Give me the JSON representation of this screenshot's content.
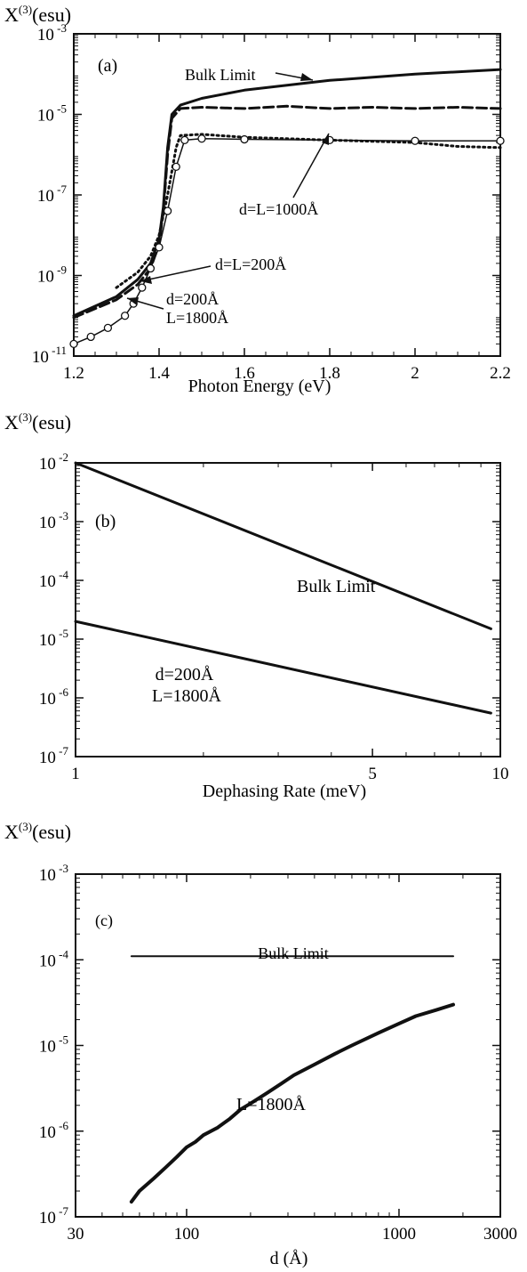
{
  "chart_data": [
    {
      "type": "line",
      "panel_label": "(a)",
      "ylabel_main": "X",
      "ylabel_sup": "(3)",
      "ylabel_unit": "(esu)",
      "xlabel": "Photon Energy (eV)",
      "xscale": "linear",
      "yscale": "log",
      "xlim": [
        1.2,
        2.2
      ],
      "ylim": [
        1e-11,
        0.001
      ],
      "xticks": [
        {
          "v": 1.2,
          "label": "1.2"
        },
        {
          "v": 1.4,
          "label": "1.4"
        },
        {
          "v": 1.6,
          "label": "1.6"
        },
        {
          "v": 1.8,
          "label": "1.8"
        },
        {
          "v": 2.0,
          "label": "2"
        },
        {
          "v": 2.2,
          "label": "2.2"
        }
      ],
      "yticks": [
        {
          "v": 0.001,
          "base": "10",
          "exp": "-3"
        },
        {
          "v": 1e-05,
          "base": "10",
          "exp": "-5"
        },
        {
          "v": 1e-07,
          "base": "10",
          "exp": "-7"
        },
        {
          "v": 1e-09,
          "base": "10",
          "exp": "-9"
        },
        {
          "v": 1e-11,
          "base": "10",
          "exp": "-11"
        }
      ],
      "series": [
        {
          "name": "Bulk Limit",
          "style": "solid",
          "width": 3,
          "x": [
            1.2,
            1.3,
            1.35,
            1.38,
            1.4,
            1.41,
            1.42,
            1.43,
            1.45,
            1.5,
            1.6,
            1.8,
            2.0,
            2.2
          ],
          "y": [
            1e-10,
            3e-10,
            8e-10,
            2e-09,
            8e-09,
            5e-08,
            1.5e-06,
            1e-05,
            1.7e-05,
            2.5e-05,
            4e-05,
            7e-05,
            0.0001,
            0.00013
          ]
        },
        {
          "name": "d=L=1000Å",
          "style": "dashed",
          "width": 3,
          "x": [
            1.2,
            1.3,
            1.35,
            1.38,
            1.4,
            1.41,
            1.42,
            1.43,
            1.45,
            1.5,
            1.6,
            1.7,
            1.8,
            1.9,
            2.0,
            2.1,
            2.2
          ],
          "y": [
            9e-11,
            2.5e-10,
            6e-10,
            1.5e-09,
            6e-09,
            4e-08,
            1e-06,
            8e-06,
            1.4e-05,
            1.5e-05,
            1.4e-05,
            1.6e-05,
            1.4e-05,
            1.5e-05,
            1.4e-05,
            1.5e-05,
            1.4e-05
          ]
        },
        {
          "name": "d=L=200Å",
          "style": "dotted",
          "width": 3,
          "x": [
            1.3,
            1.35,
            1.38,
            1.4,
            1.42,
            1.44,
            1.45,
            1.5,
            1.6,
            1.8,
            2.0,
            2.1,
            2.2
          ],
          "y": [
            5e-10,
            1.2e-09,
            3e-09,
            1e-08,
            1e-07,
            1.5e-06,
            3e-06,
            3.2e-06,
            2.7e-06,
            2.3e-06,
            2e-06,
            1.6e-06,
            1.5e-06
          ]
        },
        {
          "name": "d=200Å L=1800Å",
          "style": "circles",
          "width": 1.5,
          "x": [
            1.2,
            1.24,
            1.28,
            1.32,
            1.34,
            1.36,
            1.38,
            1.4,
            1.42,
            1.44,
            1.46,
            1.5,
            1.6,
            1.8,
            2.0,
            2.2
          ],
          "y": [
            2e-11,
            3e-11,
            5e-11,
            1e-10,
            2e-10,
            5e-10,
            1.5e-09,
            5e-09,
            4e-08,
            5e-07,
            2.3e-06,
            2.5e-06,
            2.4e-06,
            2.3e-06,
            2.2e-06,
            2.2e-06
          ]
        }
      ],
      "annotations": [
        {
          "text": "Bulk Limit",
          "lines": [
            "Bulk Limit"
          ]
        },
        {
          "text": "d=L=1000Å",
          "lines": [
            "d=L=1000Å"
          ]
        },
        {
          "text": "d=L=200Å",
          "lines": [
            "d=L=200Å"
          ]
        },
        {
          "text": "d=200Å L=1800Å",
          "lines": [
            "d=200Å",
            "L=1800Å"
          ]
        }
      ]
    },
    {
      "type": "line",
      "panel_label": "(b)",
      "ylabel_main": "X",
      "ylabel_sup": "(3)",
      "ylabel_unit": "(esu)",
      "xlabel": "Dephasing Rate (meV)",
      "xscale": "log",
      "yscale": "log",
      "xlim": [
        1,
        10
      ],
      "ylim": [
        1e-07,
        0.01
      ],
      "xticks": [
        {
          "v": 1,
          "label": "1"
        },
        {
          "v": 5,
          "label": "5"
        },
        {
          "v": 10,
          "label": "10"
        }
      ],
      "yticks": [
        {
          "v": 0.01,
          "base": "10",
          "exp": "-2"
        },
        {
          "v": 0.001,
          "base": "10",
          "exp": "-3"
        },
        {
          "v": 0.0001,
          "base": "10",
          "exp": "-4"
        },
        {
          "v": 1e-05,
          "base": "10",
          "exp": "-5"
        },
        {
          "v": 1e-06,
          "base": "10",
          "exp": "-6"
        },
        {
          "v": 1e-07,
          "base": "10",
          "exp": "-7"
        }
      ],
      "series": [
        {
          "name": "Bulk Limit",
          "style": "solid",
          "width": 3,
          "x": [
            1,
            9.5
          ],
          "y": [
            0.01,
            1.5e-05
          ]
        },
        {
          "name": "d=200Å L=1800Å",
          "style": "solid",
          "width": 3,
          "x": [
            1,
            9.5
          ],
          "y": [
            2e-05,
            5.5e-07
          ]
        }
      ],
      "annotations": [
        {
          "text": "Bulk Limit",
          "lines": [
            "Bulk Limit"
          ]
        },
        {
          "text": "d=200Å L=1800Å",
          "lines": [
            "d=200Å",
            "L=1800Å"
          ]
        }
      ]
    },
    {
      "type": "line",
      "panel_label": "(c)",
      "ylabel_main": "X",
      "ylabel_sup": "(3)",
      "ylabel_unit": "(esu)",
      "xlabel": "d  (Å)",
      "xscale": "log",
      "yscale": "log",
      "xlim": [
        30,
        3000
      ],
      "ylim": [
        1e-07,
        0.001
      ],
      "xticks": [
        {
          "v": 30,
          "label": "30"
        },
        {
          "v": 100,
          "label": "100"
        },
        {
          "v": 1000,
          "label": "1000"
        },
        {
          "v": 3000,
          "label": "3000"
        }
      ],
      "yticks": [
        {
          "v": 0.001,
          "base": "10",
          "exp": "-3"
        },
        {
          "v": 0.0001,
          "base": "10",
          "exp": "-4"
        },
        {
          "v": 1e-05,
          "base": "10",
          "exp": "-5"
        },
        {
          "v": 1e-06,
          "base": "10",
          "exp": "-6"
        },
        {
          "v": 1e-07,
          "base": "10",
          "exp": "-7"
        }
      ],
      "series": [
        {
          "name": "Bulk Limit",
          "style": "solid",
          "width": 2,
          "x": [
            55,
            1800
          ],
          "y": [
            0.00011,
            0.00011
          ]
        },
        {
          "name": "L=1800Å",
          "style": "solid",
          "width": 4,
          "x": [
            55,
            60,
            70,
            80,
            90,
            100,
            110,
            120,
            140,
            160,
            180,
            200,
            240,
            280,
            320,
            400,
            500,
            600,
            800,
            1000,
            1200,
            1500,
            1800
          ],
          "y": [
            1.5e-07,
            2e-07,
            2.8e-07,
            3.8e-07,
            5e-07,
            6.5e-07,
            7.5e-07,
            9e-07,
            1.1e-06,
            1.4e-06,
            1.8e-06,
            2.1e-06,
            2.8e-06,
            3.6e-06,
            4.5e-06,
            6e-06,
            8e-06,
            1e-05,
            1.4e-05,
            1.8e-05,
            2.2e-05,
            2.6e-05,
            3e-05
          ]
        }
      ],
      "annotations": [
        {
          "text": "Bulk Limit",
          "lines": [
            "Bulk Limit"
          ]
        },
        {
          "text": "L=1800Å",
          "lines": [
            "L=1800Å"
          ]
        }
      ]
    }
  ]
}
